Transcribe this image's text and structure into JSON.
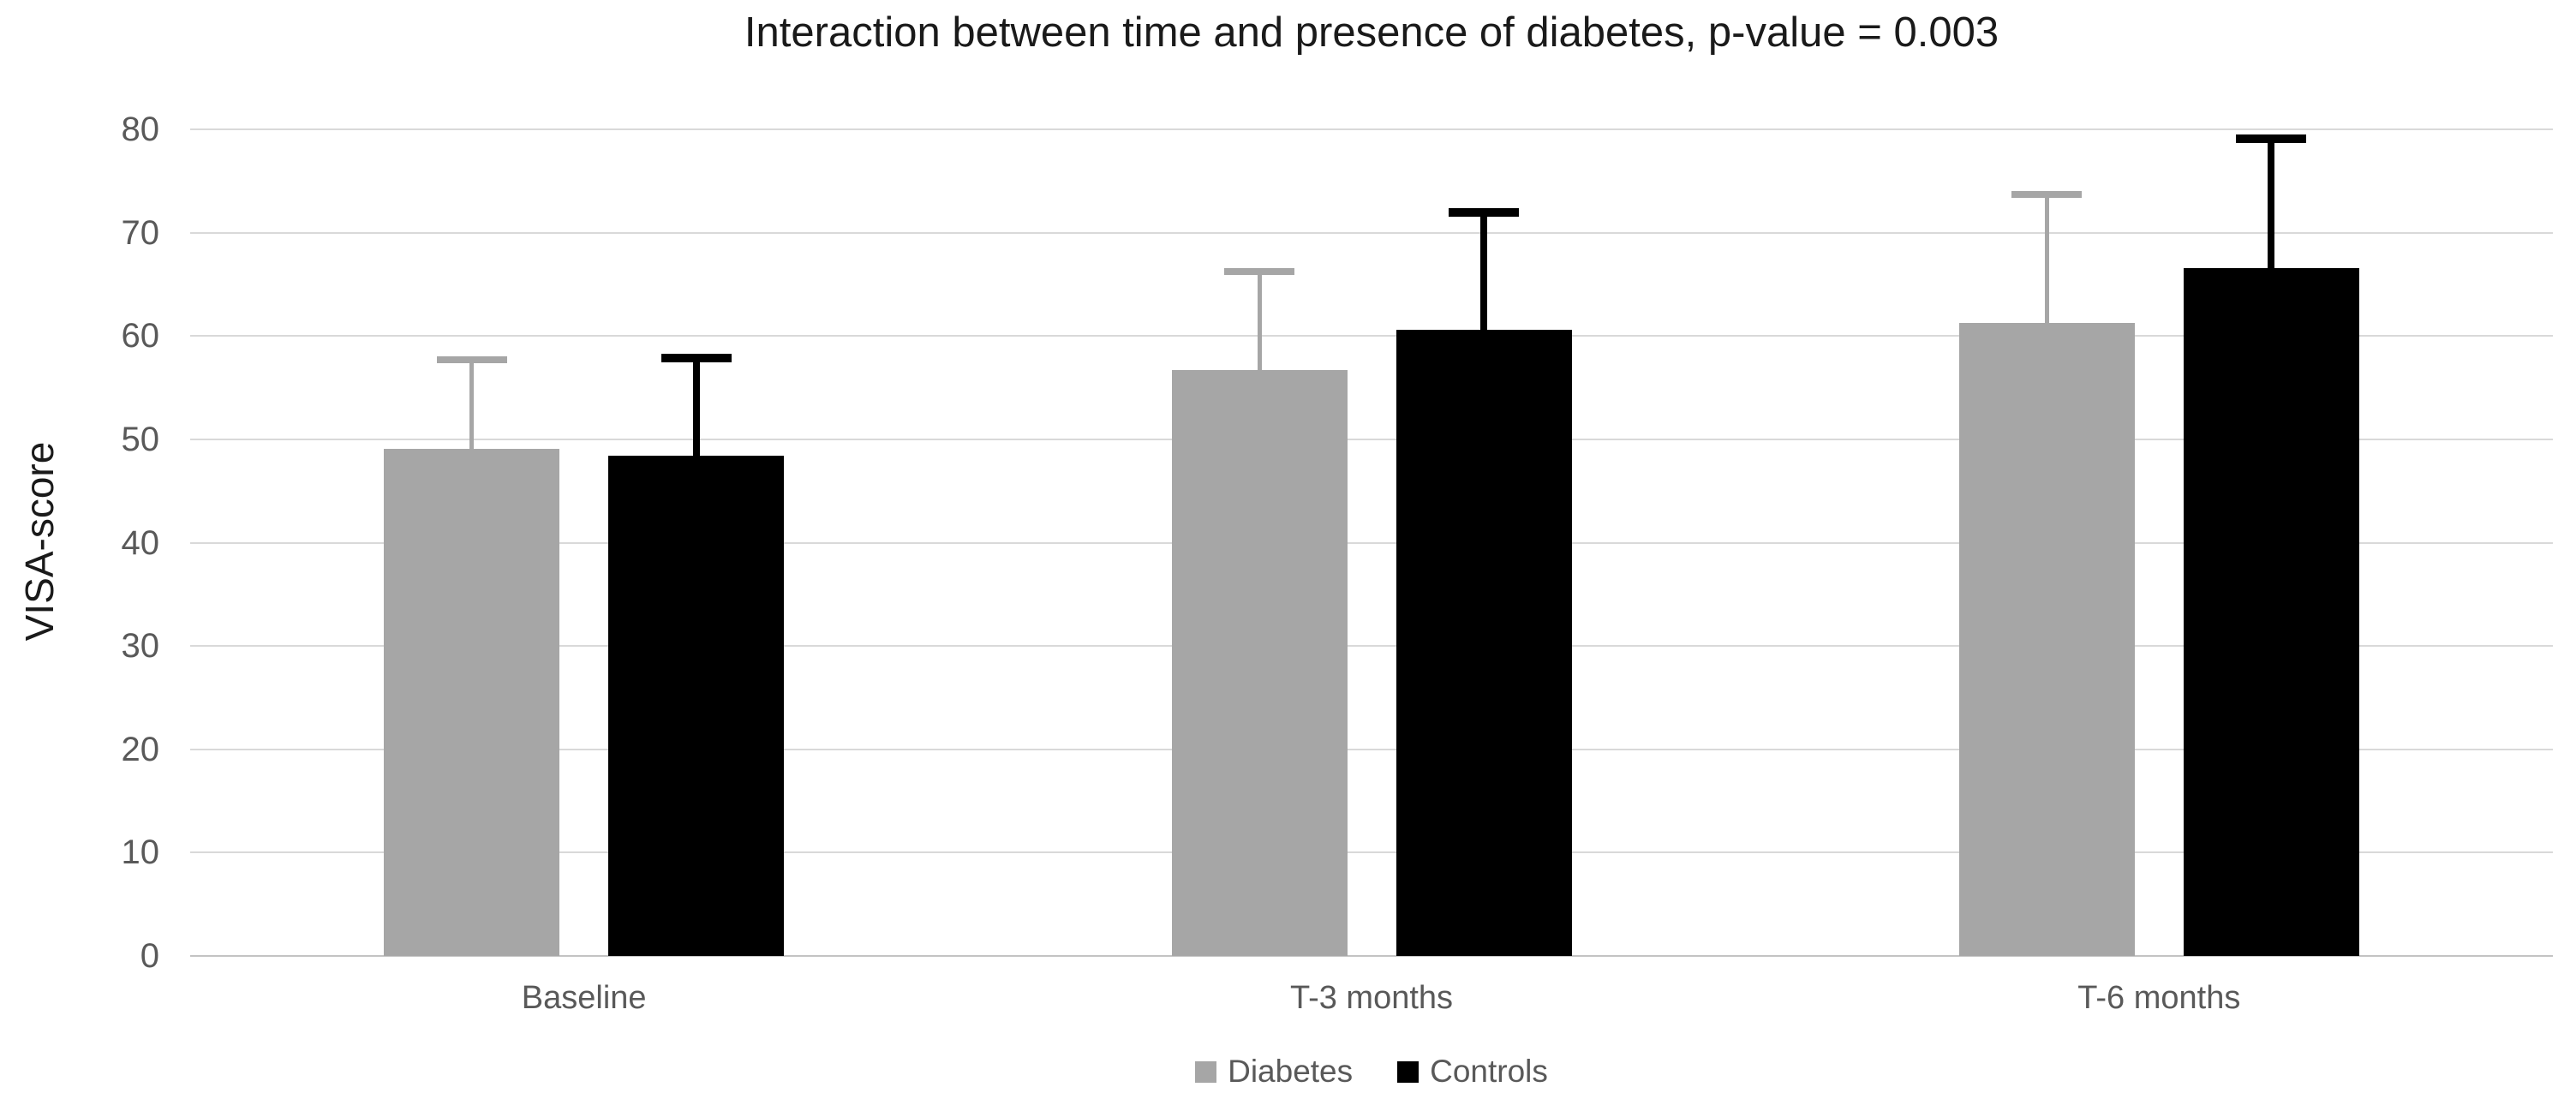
{
  "chart_data": {
    "type": "bar",
    "title": "Interaction between time and presence of diabetes, p-value = 0.003",
    "xlabel": "",
    "ylabel": "VISA-score",
    "categories": [
      "Baseline",
      "T-3 months",
      "T-6 months"
    ],
    "series": [
      {
        "name": "Diabetes",
        "color": "#a6a6a6",
        "values": [
          49.1,
          56.7,
          61.3
        ],
        "error_top": [
          57.7,
          66.2,
          73.7
        ]
      },
      {
        "name": "Controls",
        "color": "#000000",
        "values": [
          48.4,
          60.6,
          66.6
        ],
        "error_top": [
          57.9,
          72.0,
          79.1
        ]
      }
    ],
    "ylim": [
      0,
      80
    ],
    "yticks": [
      0,
      10,
      20,
      30,
      40,
      50,
      60,
      70,
      80
    ],
    "grid": true,
    "legend_position": "bottom",
    "legend_labels": [
      "Diabetes",
      "Controls"
    ]
  },
  "colors": {
    "gridline": "#d9d9d9",
    "axis_line": "#c3c3c3",
    "tick_text": "#595959",
    "title_text": "#1a1a1a",
    "series_gray": "#a6a6a6",
    "series_black": "#000000"
  }
}
